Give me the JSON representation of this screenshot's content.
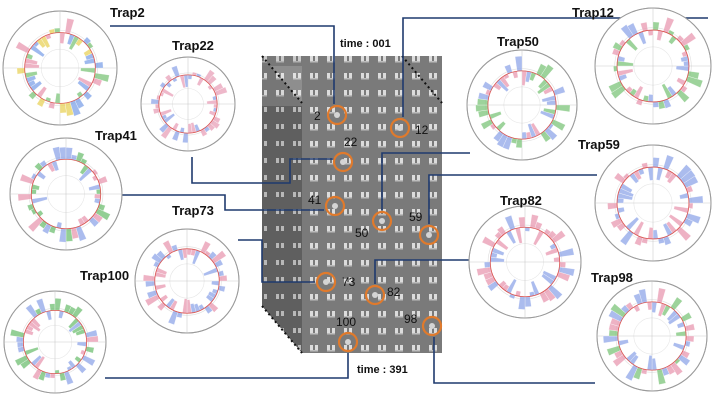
{
  "time_labels": {
    "start": "time : 001",
    "end": "time : 391"
  },
  "traps": [
    {
      "id": "Trap2",
      "label": "Trap2",
      "number": "2",
      "palette": [
        "#7da2e8",
        "#e898b0",
        "#7cc47a",
        "#e8d25a"
      ]
    },
    {
      "id": "Trap22",
      "label": "Trap22",
      "number": "22",
      "palette": [
        "#8fa6e8",
        "#e8a0b8"
      ]
    },
    {
      "id": "Trap41",
      "label": "Trap41",
      "number": "41",
      "palette": [
        "#8fa6e8",
        "#e898b0",
        "#6fbf72"
      ]
    },
    {
      "id": "Trap73",
      "label": "Trap73",
      "number": "73",
      "palette": [
        "#8fa6e8",
        "#e898b0"
      ]
    },
    {
      "id": "Trap100",
      "label": "Trap100",
      "number": "100",
      "palette": [
        "#8fa6e8",
        "#e898b0",
        "#6fbf72"
      ]
    },
    {
      "id": "Trap12",
      "label": "Trap12",
      "number": "12",
      "palette": [
        "#8fa6e8",
        "#e898b0",
        "#7cc47a"
      ]
    },
    {
      "id": "Trap50",
      "label": "Trap50",
      "number": "50",
      "palette": [
        "#8fa6e8",
        "#e898b0",
        "#7cc47a"
      ]
    },
    {
      "id": "Trap59",
      "label": "Trap59",
      "number": "59",
      "palette": [
        "#8fa6e8",
        "#e898b0"
      ]
    },
    {
      "id": "Trap82",
      "label": "Trap82",
      "number": "82",
      "palette": [
        "#8fa6e8",
        "#e898b0"
      ]
    },
    {
      "id": "Trap98",
      "label": "Trap98",
      "number": "98",
      "palette": [
        "#8fa6e8",
        "#e898b0",
        "#7cc47a"
      ]
    }
  ],
  "colors": {
    "connector": "#1f3a6e",
    "trap_marker": "#e07a2c",
    "stack_front": "#7c7c7c",
    "stack_back": "#5e5e5e"
  }
}
